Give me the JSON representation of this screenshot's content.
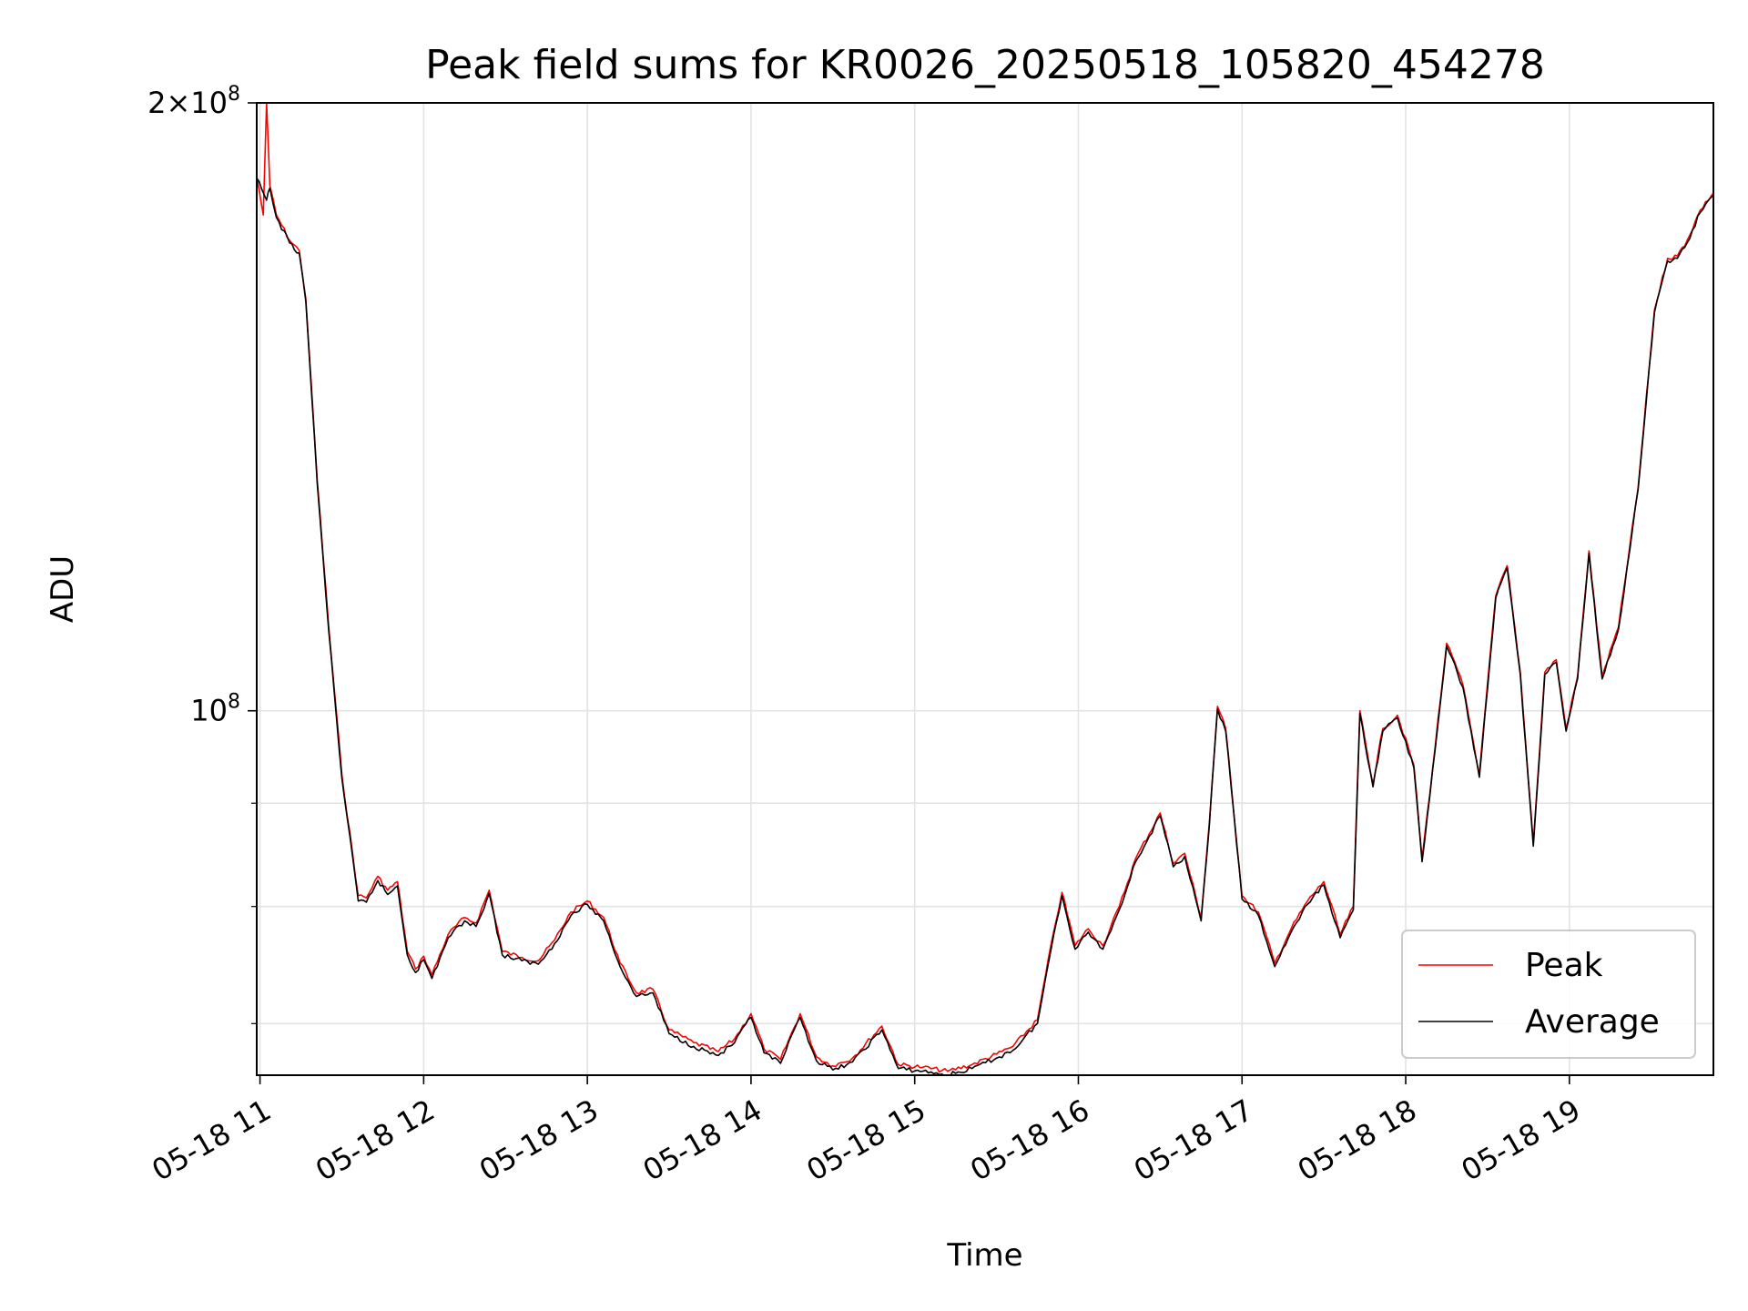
{
  "chart_data": {
    "type": "line",
    "title": "Peak field sums for KR0026_20250518_105820_454278",
    "xlabel": "Time",
    "ylabel": "ADU",
    "x_tick_labels": [
      "05-18 11",
      "05-18 12",
      "05-18 13",
      "05-18 14",
      "05-18 15",
      "05-18 16",
      "05-18 17",
      "05-18 18",
      "05-18 19"
    ],
    "x_ticks_hours": [
      11,
      12,
      13,
      14,
      15,
      16,
      17,
      18,
      19
    ],
    "xlim_hours": [
      10.98,
      19.88
    ],
    "y_scale": "log",
    "ylim": [
      66000000,
      200000000
    ],
    "y_major_ticks": [
      {
        "value": 100000000,
        "label_base": "10",
        "label_exp": "8"
      },
      {
        "value": 200000000,
        "label_base": "2×10",
        "label_exp": "8"
      }
    ],
    "y_minor_ticks": [
      70000000,
      80000000,
      90000000
    ],
    "grid": true,
    "legend_position": "lower right",
    "series": [
      {
        "name": "Peak",
        "color": "#ff0000",
        "points": [
          [
            10.98,
            184000000
          ],
          [
            11.02,
            176000000
          ],
          [
            11.04,
            200000000
          ],
          [
            11.06,
            182000000
          ],
          [
            11.1,
            176000000
          ],
          [
            11.18,
            171000000
          ],
          [
            11.24,
            169000000
          ],
          [
            11.28,
            160000000
          ],
          [
            11.35,
            130000000
          ],
          [
            11.42,
            110000000
          ],
          [
            11.5,
            93000000
          ],
          [
            11.6,
            81000000
          ],
          [
            11.65,
            80800000
          ],
          [
            11.72,
            82800000
          ],
          [
            11.78,
            81500000
          ],
          [
            11.84,
            82300000
          ],
          [
            11.9,
            76000000
          ],
          [
            11.95,
            74500000
          ],
          [
            12.0,
            75600000
          ],
          [
            12.05,
            74000000
          ],
          [
            12.15,
            77500000
          ],
          [
            12.25,
            79000000
          ],
          [
            12.32,
            78500000
          ],
          [
            12.4,
            81500000
          ],
          [
            12.48,
            76000000
          ],
          [
            12.6,
            75500000
          ],
          [
            12.7,
            75200000
          ],
          [
            12.8,
            77000000
          ],
          [
            12.9,
            79500000
          ],
          [
            13.0,
            80500000
          ],
          [
            13.1,
            79000000
          ],
          [
            13.2,
            75000000
          ],
          [
            13.3,
            72500000
          ],
          [
            13.4,
            72800000
          ],
          [
            13.5,
            69500000
          ],
          [
            13.65,
            68500000
          ],
          [
            13.8,
            67800000
          ],
          [
            13.9,
            68800000
          ],
          [
            14.0,
            70800000
          ],
          [
            14.08,
            68000000
          ],
          [
            14.18,
            67200000
          ],
          [
            14.3,
            70800000
          ],
          [
            14.4,
            67400000
          ],
          [
            14.5,
            66700000
          ],
          [
            14.62,
            67300000
          ],
          [
            14.8,
            69800000
          ],
          [
            14.9,
            66800000
          ],
          [
            15.05,
            66600000
          ],
          [
            15.2,
            66300000
          ],
          [
            15.35,
            66800000
          ],
          [
            15.5,
            67600000
          ],
          [
            15.6,
            68200000
          ],
          [
            15.75,
            70300000
          ],
          [
            15.85,
            77800000
          ],
          [
            15.9,
            81300000
          ],
          [
            15.98,
            76500000
          ],
          [
            16.06,
            78000000
          ],
          [
            16.15,
            76500000
          ],
          [
            16.25,
            80000000
          ],
          [
            16.35,
            84500000
          ],
          [
            16.5,
            89000000
          ],
          [
            16.58,
            84000000
          ],
          [
            16.65,
            85000000
          ],
          [
            16.75,
            79000000
          ],
          [
            16.8,
            88000000
          ],
          [
            16.85,
            100500000
          ],
          [
            16.9,
            98000000
          ],
          [
            17.0,
            81000000
          ],
          [
            17.1,
            79500000
          ],
          [
            17.2,
            75000000
          ],
          [
            17.3,
            78000000
          ],
          [
            17.4,
            80500000
          ],
          [
            17.5,
            82300000
          ],
          [
            17.6,
            77500000
          ],
          [
            17.68,
            80000000
          ],
          [
            17.72,
            100000000
          ],
          [
            17.8,
            92000000
          ],
          [
            17.86,
            98000000
          ],
          [
            17.95,
            99500000
          ],
          [
            18.05,
            94000000
          ],
          [
            18.1,
            84500000
          ],
          [
            18.18,
            96000000
          ],
          [
            18.25,
            108000000
          ],
          [
            18.35,
            103000000
          ],
          [
            18.45,
            93000000
          ],
          [
            18.55,
            114000000
          ],
          [
            18.62,
            118000000
          ],
          [
            18.7,
            104500000
          ],
          [
            18.78,
            86000000
          ],
          [
            18.85,
            104500000
          ],
          [
            18.92,
            106000000
          ],
          [
            18.98,
            98000000
          ],
          [
            19.05,
            104000000
          ],
          [
            19.12,
            120000000
          ],
          [
            19.2,
            104000000
          ],
          [
            19.3,
            110000000
          ],
          [
            19.42,
            129000000
          ],
          [
            19.52,
            158000000
          ],
          [
            19.6,
            167500000
          ],
          [
            19.66,
            168000000
          ],
          [
            19.72,
            171000000
          ],
          [
            19.8,
            177000000
          ],
          [
            19.88,
            180500000
          ]
        ]
      },
      {
        "name": "Average",
        "color": "#000000",
        "points": [
          [
            10.98,
            183500000
          ],
          [
            11.04,
            179000000
          ],
          [
            11.06,
            181500000
          ],
          [
            11.1,
            175500000
          ],
          [
            11.18,
            170500000
          ],
          [
            11.24,
            168500000
          ],
          [
            11.28,
            159500000
          ],
          [
            11.35,
            129500000
          ],
          [
            11.42,
            109500000
          ],
          [
            11.5,
            92600000
          ],
          [
            11.6,
            80500000
          ],
          [
            11.65,
            80400000
          ],
          [
            11.72,
            82400000
          ],
          [
            11.78,
            81100000
          ],
          [
            11.84,
            81900000
          ],
          [
            11.9,
            75700000
          ],
          [
            11.95,
            74200000
          ],
          [
            12.0,
            75300000
          ],
          [
            12.05,
            73700000
          ],
          [
            12.15,
            77200000
          ],
          [
            12.25,
            78700000
          ],
          [
            12.32,
            78200000
          ],
          [
            12.4,
            81200000
          ],
          [
            12.48,
            75700000
          ],
          [
            12.6,
            75200000
          ],
          [
            12.7,
            74900000
          ],
          [
            12.8,
            76700000
          ],
          [
            12.9,
            79200000
          ],
          [
            13.0,
            80200000
          ],
          [
            13.1,
            78700000
          ],
          [
            13.2,
            74700000
          ],
          [
            13.3,
            72200000
          ],
          [
            13.4,
            72500000
          ],
          [
            13.5,
            69200000
          ],
          [
            13.65,
            68200000
          ],
          [
            13.8,
            67500000
          ],
          [
            13.9,
            68500000
          ],
          [
            14.0,
            70500000
          ],
          [
            14.08,
            67700000
          ],
          [
            14.18,
            66900000
          ],
          [
            14.3,
            70500000
          ],
          [
            14.4,
            67100000
          ],
          [
            14.5,
            66400000
          ],
          [
            14.62,
            67000000
          ],
          [
            14.8,
            69500000
          ],
          [
            14.9,
            66500000
          ],
          [
            15.05,
            66300000
          ],
          [
            15.2,
            66000000
          ],
          [
            15.35,
            66500000
          ],
          [
            15.5,
            67300000
          ],
          [
            15.6,
            67900000
          ],
          [
            15.75,
            70000000
          ],
          [
            15.85,
            77500000
          ],
          [
            15.9,
            81000000
          ],
          [
            15.98,
            76200000
          ],
          [
            16.06,
            77700000
          ],
          [
            16.15,
            76200000
          ],
          [
            16.25,
            79700000
          ],
          [
            16.35,
            84200000
          ],
          [
            16.5,
            88700000
          ],
          [
            16.58,
            83700000
          ],
          [
            16.65,
            84700000
          ],
          [
            16.75,
            78700000
          ],
          [
            16.8,
            87700000
          ],
          [
            16.85,
            100200000
          ],
          [
            16.9,
            97700000
          ],
          [
            17.0,
            80700000
          ],
          [
            17.1,
            79200000
          ],
          [
            17.2,
            74700000
          ],
          [
            17.3,
            77700000
          ],
          [
            17.4,
            80200000
          ],
          [
            17.5,
            82000000
          ],
          [
            17.6,
            77200000
          ],
          [
            17.68,
            79700000
          ],
          [
            17.72,
            99700000
          ],
          [
            17.8,
            91700000
          ],
          [
            17.86,
            97700000
          ],
          [
            17.95,
            99200000
          ],
          [
            18.05,
            93700000
          ],
          [
            18.1,
            84200000
          ],
          [
            18.18,
            95700000
          ],
          [
            18.25,
            107700000
          ],
          [
            18.35,
            102700000
          ],
          [
            18.45,
            92700000
          ],
          [
            18.55,
            113700000
          ],
          [
            18.62,
            117700000
          ],
          [
            18.7,
            104200000
          ],
          [
            18.78,
            85700000
          ],
          [
            18.85,
            104200000
          ],
          [
            18.92,
            105700000
          ],
          [
            18.98,
            97700000
          ],
          [
            19.05,
            103700000
          ],
          [
            19.12,
            119700000
          ],
          [
            19.2,
            103700000
          ],
          [
            19.3,
            109700000
          ],
          [
            19.42,
            128700000
          ],
          [
            19.52,
            157500000
          ],
          [
            19.6,
            167000000
          ],
          [
            19.66,
            167500000
          ],
          [
            19.72,
            170500000
          ],
          [
            19.8,
            176500000
          ],
          [
            19.88,
            180000000
          ]
        ]
      }
    ]
  }
}
